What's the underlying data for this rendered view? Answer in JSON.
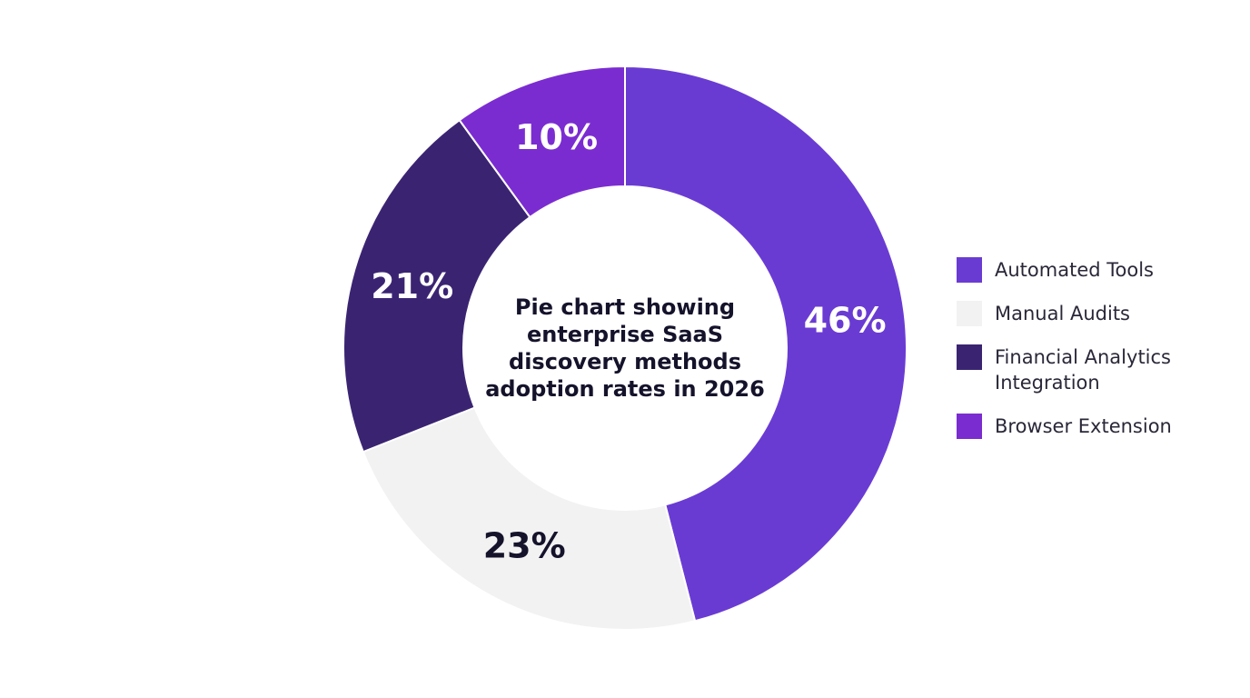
{
  "chart_data": {
    "type": "pie",
    "variant": "donut",
    "title": "Pie chart showing enterprise SaaS discovery methods adoption rates in 2026",
    "title_lines": [
      "Pie chart showing",
      "enterprise SaaS",
      "discovery methods",
      "adoption rates in 2026"
    ],
    "slices": [
      {
        "name": "Automated Tools",
        "value": 46,
        "label": "46%",
        "color": "#6a3bd3",
        "label_color": "#ffffff"
      },
      {
        "name": "Manual Audits",
        "value": 23,
        "label": "23%",
        "color": "#f2f2f3",
        "label_color": "#15132b"
      },
      {
        "name": "Financial Analytics Integration",
        "value": 21,
        "label": "21%",
        "color": "#3a2472",
        "label_color": "#ffffff"
      },
      {
        "name": "Browser Extension",
        "value": 10,
        "label": "10%",
        "color": "#7b2cd1",
        "label_color": "#ffffff"
      }
    ],
    "start_angle": "12 o'clock",
    "direction": "clockwise",
    "legend_position": "right"
  },
  "legend": {
    "items": [
      {
        "label": "Automated Tools",
        "color": "#6a3bd3"
      },
      {
        "label": "Manual Audits",
        "color": "#f2f2f3"
      },
      {
        "label": "Financial Analytics\nIntegration",
        "color": "#3a2472"
      },
      {
        "label": "Browser Extension",
        "color": "#7b2cd1"
      }
    ]
  }
}
